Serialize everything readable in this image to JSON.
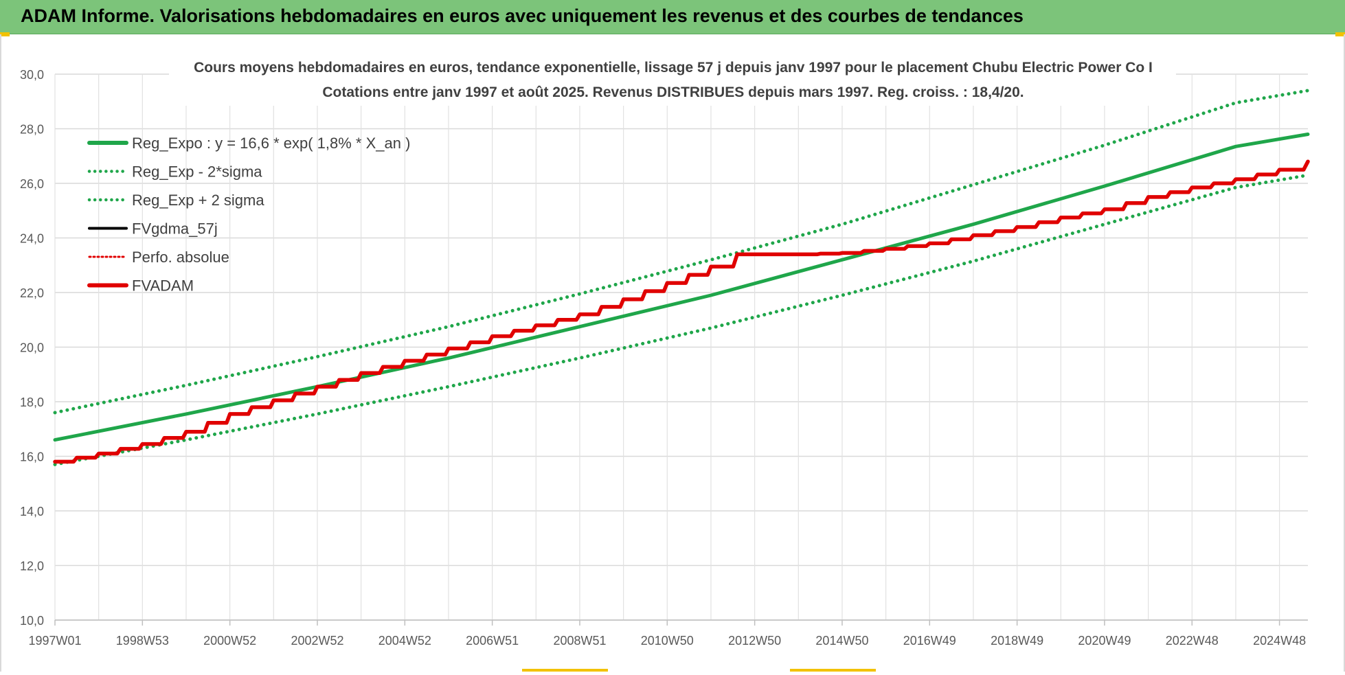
{
  "header": {
    "title": "ADAM Informe. Valorisations hebdomadaires en euros avec uniquement les revenus et des courbes de tendances"
  },
  "colors": {
    "header_bg": "#7cc47a",
    "trend_green": "#1fa64a",
    "adam_red": "#e00000",
    "fv_black": "#000000",
    "grid": "#d9d9d9"
  },
  "chart_data": {
    "type": "line",
    "title_line1": "Cours moyens hebdomadaires en euros, tendance exponentielle, lissage 57 j depuis janv 1997  pour le placement Chubu Electric Power Co I",
    "title_line2": "Cotations entre janv 1997 et août 2025.  Revenus DISTRIBUES depuis mars 1997. Reg. croiss. : 18,4/20.",
    "xlabel": "",
    "ylabel": "",
    "ylim": [
      10,
      30
    ],
    "yticks": [
      "10,0",
      "12,0",
      "14,0",
      "16,0",
      "18,0",
      "20,0",
      "22,0",
      "24,0",
      "26,0",
      "28,0",
      "30,0"
    ],
    "xlim": [
      1997.0,
      2025.65
    ],
    "xticks": [
      {
        "label": "1997W01",
        "x": 1997.0
      },
      {
        "label": "1998W53",
        "x": 1999.0
      },
      {
        "label": "2000W52",
        "x": 2001.0
      },
      {
        "label": "2002W52",
        "x": 2003.0
      },
      {
        "label": "2004W52",
        "x": 2005.0
      },
      {
        "label": "2006W51",
        "x": 2007.0
      },
      {
        "label": "2008W51",
        "x": 2009.0
      },
      {
        "label": "2010W50",
        "x": 2011.0
      },
      {
        "label": "2012W50",
        "x": 2013.0
      },
      {
        "label": "2014W50",
        "x": 2015.0
      },
      {
        "label": "2016W49",
        "x": 2017.0
      },
      {
        "label": "2018W49",
        "x": 2019.0
      },
      {
        "label": "2020W49",
        "x": 2021.0
      },
      {
        "label": "2022W48",
        "x": 2023.0
      },
      {
        "label": "2024W48",
        "x": 2025.0
      }
    ],
    "grid": true,
    "legend_position": "top-left",
    "series": [
      {
        "name": "Reg_Expo : y = 16,6 * exp( 1,8% *  X_an )",
        "style": "solid",
        "color": "#1fa64a",
        "x": [
          1997.0,
          2000.0,
          2003.0,
          2006.0,
          2009.0,
          2012.0,
          2015.0,
          2018.0,
          2021.0,
          2024.0,
          2025.65
        ],
        "y": [
          16.6,
          17.55,
          18.55,
          19.6,
          20.75,
          21.9,
          23.2,
          24.5,
          25.9,
          27.35,
          27.8
        ]
      },
      {
        "name": "Reg_Exp - 2*sigma",
        "style": "dotted",
        "color": "#1fa64a",
        "x": [
          1997.0,
          2000.0,
          2003.0,
          2006.0,
          2009.0,
          2012.0,
          2015.0,
          2018.0,
          2021.0,
          2024.0,
          2025.65
        ],
        "y": [
          15.7,
          16.6,
          17.55,
          18.55,
          19.6,
          20.7,
          21.9,
          23.15,
          24.5,
          25.85,
          26.3
        ]
      },
      {
        "name": "Reg_Exp + 2 sigma",
        "style": "dotted",
        "color": "#1fa64a",
        "x": [
          1997.0,
          2000.0,
          2003.0,
          2006.0,
          2009.0,
          2012.0,
          2015.0,
          2018.0,
          2021.0,
          2024.0,
          2025.65
        ],
        "y": [
          17.6,
          18.6,
          19.65,
          20.75,
          21.95,
          23.2,
          24.5,
          25.95,
          27.4,
          28.95,
          29.4
        ]
      },
      {
        "name": "FVgdma_57j",
        "style": "solid",
        "color": "#000000",
        "x": [
          1997.0,
          1998.0,
          1999.0,
          2000.0,
          2001.0,
          2002.0,
          2003.0,
          2004.0,
          2005.0,
          2006.0,
          2007.0,
          2008.0,
          2009.0,
          2010.0,
          2011.0,
          2012.0,
          2012.6,
          2013.0,
          2014.0,
          2015.0,
          2016.0,
          2017.0,
          2018.0,
          2019.0,
          2020.0,
          2021.0,
          2022.0,
          2023.0,
          2024.0,
          2025.0,
          2025.65
        ],
        "y": [
          15.8,
          16.1,
          16.45,
          16.9,
          17.55,
          18.05,
          18.55,
          19.05,
          19.5,
          19.95,
          20.4,
          20.8,
          21.2,
          21.75,
          22.35,
          22.95,
          23.4,
          23.4,
          23.4,
          23.45,
          23.6,
          23.8,
          24.1,
          24.4,
          24.75,
          25.05,
          25.5,
          25.85,
          26.15,
          26.5,
          26.8
        ]
      },
      {
        "name": "Perfo. absolue",
        "style": "dotted",
        "color": "#e00000",
        "x": [
          1997.0,
          1998.0,
          1999.0,
          2000.0,
          2001.0,
          2002.0,
          2003.0,
          2004.0,
          2005.0,
          2006.0,
          2007.0,
          2008.0,
          2009.0,
          2010.0,
          2011.0,
          2012.0,
          2012.6,
          2013.0,
          2014.0,
          2015.0,
          2016.0,
          2017.0,
          2018.0,
          2019.0,
          2020.0,
          2021.0,
          2022.0,
          2023.0,
          2024.0,
          2025.0,
          2025.65
        ],
        "y": [
          15.8,
          16.1,
          16.45,
          16.9,
          17.55,
          18.05,
          18.55,
          19.05,
          19.5,
          19.95,
          20.4,
          20.8,
          21.2,
          21.75,
          22.35,
          22.95,
          23.4,
          23.4,
          23.4,
          23.45,
          23.6,
          23.8,
          24.1,
          24.4,
          24.75,
          25.05,
          25.5,
          25.85,
          26.15,
          26.5,
          26.8
        ]
      },
      {
        "name": "FVADAM",
        "style": "solid-thick",
        "color": "#e00000",
        "x": [
          1997.0,
          1998.0,
          1999.0,
          2000.0,
          2001.0,
          2002.0,
          2003.0,
          2004.0,
          2005.0,
          2006.0,
          2007.0,
          2008.0,
          2009.0,
          2010.0,
          2011.0,
          2012.0,
          2012.6,
          2013.0,
          2014.0,
          2015.0,
          2016.0,
          2017.0,
          2018.0,
          2019.0,
          2020.0,
          2021.0,
          2022.0,
          2023.0,
          2024.0,
          2025.0,
          2025.65
        ],
        "y": [
          15.8,
          16.1,
          16.45,
          16.9,
          17.55,
          18.05,
          18.55,
          19.05,
          19.5,
          19.95,
          20.4,
          20.8,
          21.2,
          21.75,
          22.35,
          22.95,
          23.4,
          23.4,
          23.4,
          23.45,
          23.6,
          23.8,
          24.1,
          24.4,
          24.75,
          25.05,
          25.5,
          25.85,
          26.15,
          26.5,
          26.8
        ]
      }
    ]
  }
}
